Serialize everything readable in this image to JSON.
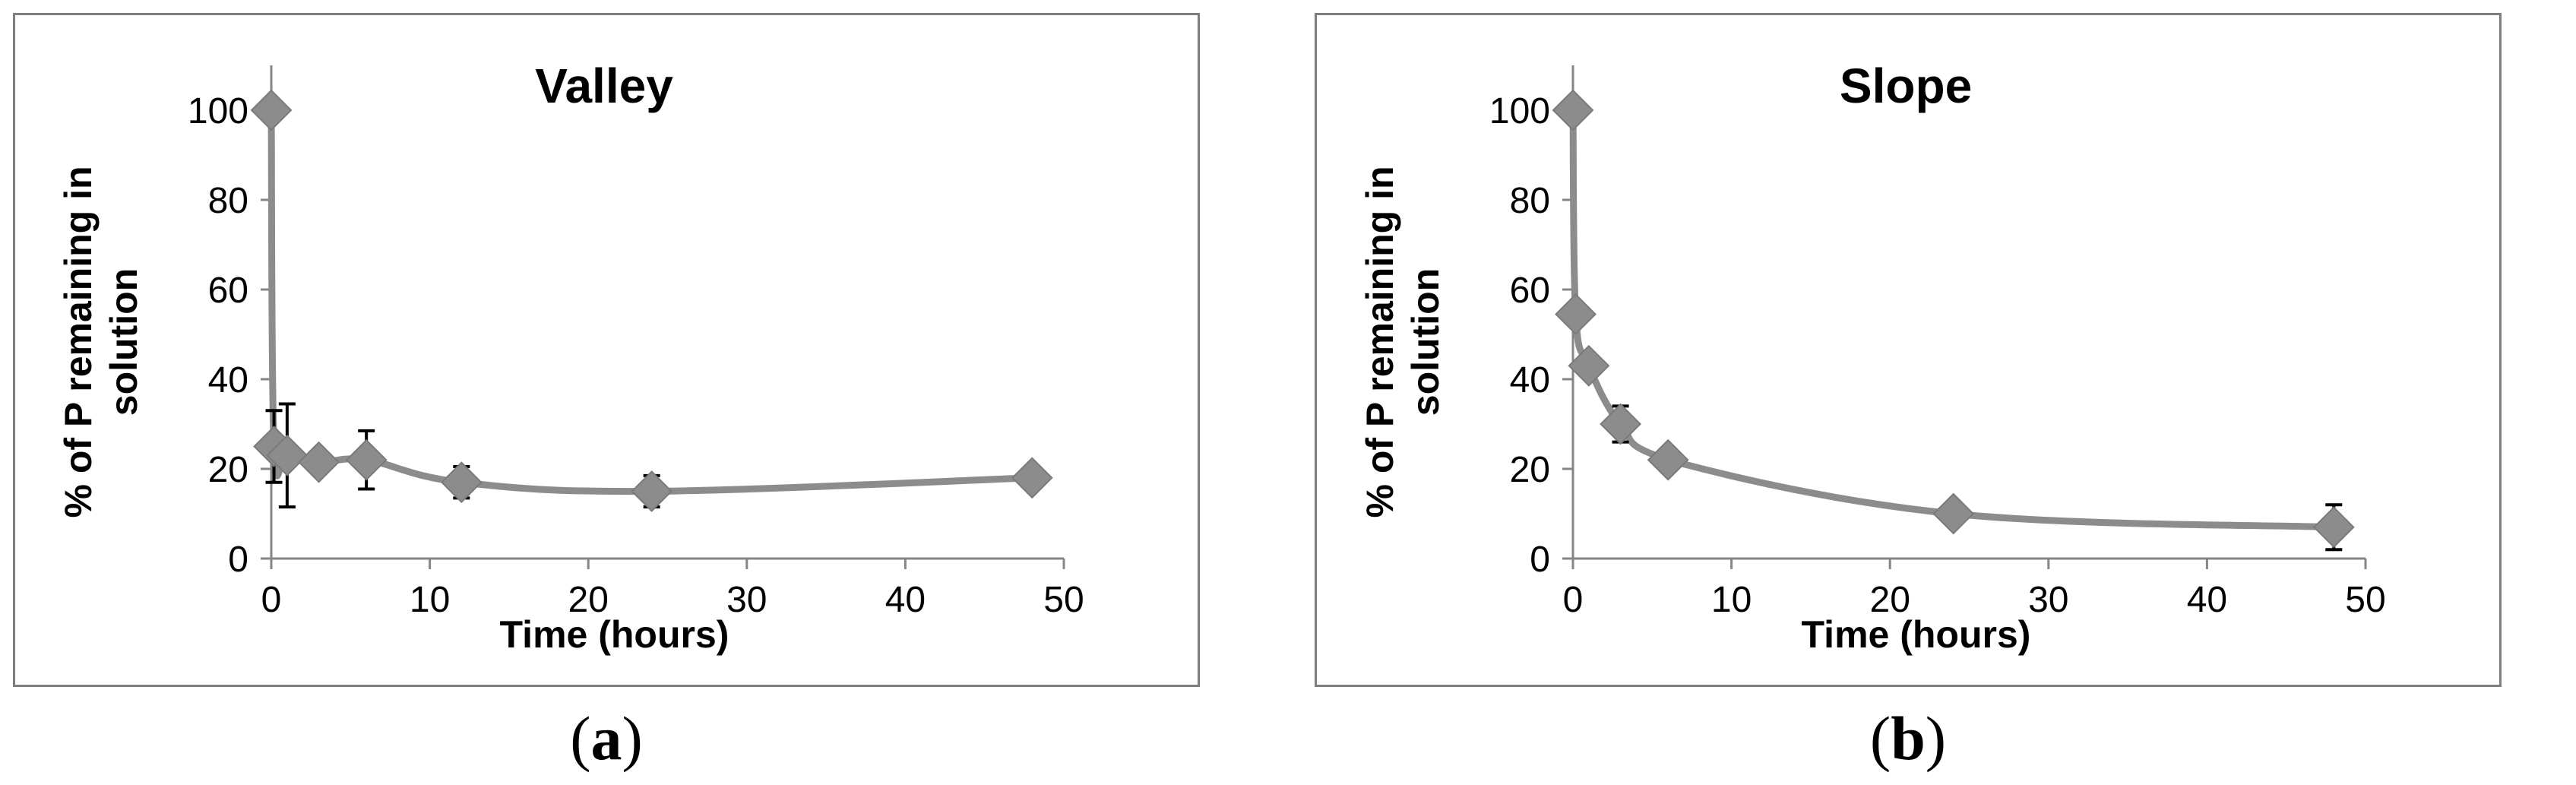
{
  "chart_data": [
    {
      "type": "line",
      "title": "Valley",
      "xlabel": "Time (hours)",
      "ylabel": [
        "% of P remaining in",
        "solution"
      ],
      "xlim": [
        0,
        50
      ],
      "ylim": [
        0,
        100
      ],
      "xticks": [
        "0",
        "10",
        "20",
        "30",
        "40",
        "50"
      ],
      "yticks": [
        "0",
        "20",
        "40",
        "60",
        "80",
        "100"
      ],
      "series_color": "#8c8c8c",
      "errorbar_color": "#000000",
      "grid": false,
      "x": [
        0,
        0.17,
        1,
        3,
        6,
        12,
        24,
        48
      ],
      "y": [
        100,
        25,
        23,
        21.5,
        22,
        17,
        15,
        18
      ],
      "yerr": [
        0,
        8,
        11.5,
        2,
        6.5,
        3.5,
        3.5,
        1
      ]
    },
    {
      "type": "line",
      "title": "Slope",
      "xlabel": "Time (hours)",
      "ylabel": [
        "% of P remaining in",
        "solution"
      ],
      "xlim": [
        0,
        50
      ],
      "ylim": [
        0,
        100
      ],
      "xticks": [
        "0",
        "10",
        "20",
        "30",
        "40",
        "50"
      ],
      "yticks": [
        "0",
        "20",
        "40",
        "60",
        "80",
        "100"
      ],
      "series_color": "#8c8c8c",
      "errorbar_color": "#000000",
      "grid": false,
      "x": [
        0,
        0.17,
        1,
        3,
        6,
        24,
        48
      ],
      "y": [
        100,
        54.5,
        43,
        30,
        22,
        10,
        7
      ],
      "yerr": [
        0,
        1.5,
        1.5,
        4,
        1.5,
        1,
        5
      ]
    }
  ],
  "captions": [
    "a",
    "b"
  ]
}
